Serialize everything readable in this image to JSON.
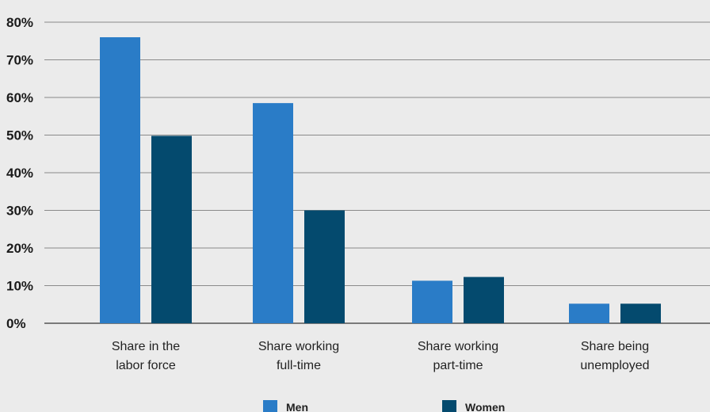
{
  "chart_data": {
    "type": "bar",
    "categories": [
      [
        "Share in the",
        "labor force"
      ],
      [
        "Share working",
        "full-time"
      ],
      [
        "Share working",
        "part-time"
      ],
      [
        "Share being",
        "unemployed"
      ]
    ],
    "series": [
      {
        "name": "Men",
        "color": "#2a7cc7",
        "values": [
          76,
          58.5,
          11.3,
          5.2
        ]
      },
      {
        "name": "Women",
        "color": "#044a6e",
        "values": [
          49.8,
          30,
          12.3,
          5.2
        ]
      }
    ],
    "y_ticks": [
      "0%",
      "10%",
      "20%",
      "30%",
      "40%",
      "50%",
      "60%",
      "70%",
      "80%"
    ],
    "ylim": [
      0,
      80
    ],
    "grid": true,
    "legend_position": "bottom",
    "title": "",
    "xlabel": "",
    "ylabel": ""
  }
}
